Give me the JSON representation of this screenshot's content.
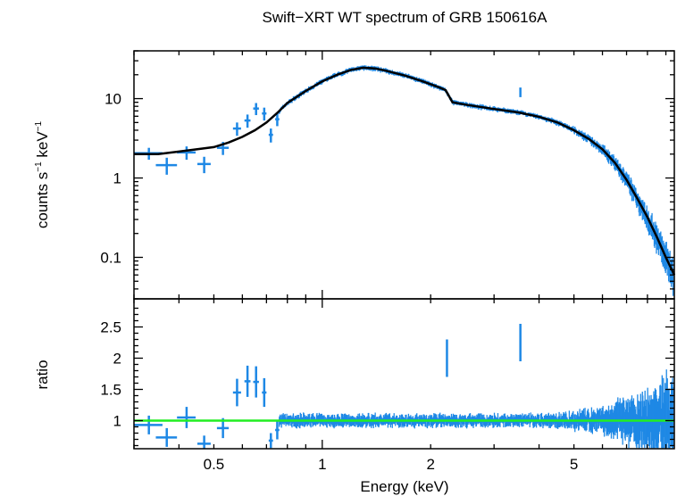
{
  "chart_data": [
    {
      "type": "scatter",
      "title": "Swift−XRT WT spectrum of GRB 150616A",
      "ylabel_text": "counts s",
      "ylabel_sup1": "−1",
      "ylabel_mid": " keV",
      "ylabel_sup2": "−1",
      "xscale": "log",
      "yscale": "log",
      "xlim": [
        0.3,
        9.5
      ],
      "ylim": [
        0.03,
        40
      ],
      "yticks": [
        {
          "value": 0.1,
          "label": "0.1"
        },
        {
          "value": 1,
          "label": "1"
        },
        {
          "value": 10,
          "label": "10"
        }
      ],
      "series": [
        {
          "kind": "data-crosses",
          "color": "#1e88e5",
          "points": [
            {
              "x": 0.33,
              "y": 2.05,
              "xerr": 0.03,
              "yerr": 0.35
            },
            {
              "x": 0.37,
              "y": 1.45,
              "xerr": 0.025,
              "yerr": 0.35
            },
            {
              "x": 0.42,
              "y": 2.1,
              "xerr": 0.025,
              "yerr": 0.4
            },
            {
              "x": 0.47,
              "y": 1.5,
              "xerr": 0.02,
              "yerr": 0.35
            },
            {
              "x": 0.53,
              "y": 2.4,
              "xerr": 0.02,
              "yerr": 0.45
            },
            {
              "x": 0.58,
              "y": 4.2,
              "xerr": 0.015,
              "yerr": 0.8
            },
            {
              "x": 0.62,
              "y": 5.3,
              "xerr": 0.012,
              "yerr": 1.0
            },
            {
              "x": 0.655,
              "y": 7.5,
              "xerr": 0.012,
              "yerr": 1.3
            },
            {
              "x": 0.69,
              "y": 6.5,
              "xerr": 0.01,
              "yerr": 1.2
            },
            {
              "x": 0.72,
              "y": 3.5,
              "xerr": 0.01,
              "yerr": 0.7
            },
            {
              "x": 0.75,
              "y": 5.5,
              "xerr": 0.01,
              "yerr": 1.0
            }
          ]
        },
        {
          "kind": "dense-band",
          "color": "#1e88e5",
          "outliers": [
            {
              "x": 3.55,
              "y": 12
            }
          ]
        },
        {
          "kind": "model",
          "color": "#000000",
          "points": [
            [
              0.3,
              2.0
            ],
            [
              0.32,
              2.0
            ],
            [
              0.35,
              2.0
            ],
            [
              0.4,
              2.15
            ],
            [
              0.45,
              2.3
            ],
            [
              0.5,
              2.45
            ],
            [
              0.55,
              2.8
            ],
            [
              0.6,
              3.3
            ],
            [
              0.65,
              4.0
            ],
            [
              0.7,
              5.0
            ],
            [
              0.75,
              6.6
            ],
            [
              0.8,
              8.8
            ],
            [
              0.9,
              12.5
            ],
            [
              1.0,
              16.5
            ],
            [
              1.1,
              20
            ],
            [
              1.2,
              23
            ],
            [
              1.3,
              24.5
            ],
            [
              1.4,
              24
            ],
            [
              1.5,
              22.5
            ],
            [
              1.7,
              19.5
            ],
            [
              1.9,
              16.5
            ],
            [
              2.1,
              14
            ],
            [
              2.2,
              12.8
            ],
            [
              2.3,
              9.0
            ],
            [
              2.5,
              8.4
            ],
            [
              3.0,
              7.4
            ],
            [
              3.5,
              6.7
            ],
            [
              4.0,
              5.9
            ],
            [
              4.5,
              5.0
            ],
            [
              5.0,
              4.0
            ],
            [
              5.5,
              3.1
            ],
            [
              6.0,
              2.3
            ],
            [
              6.5,
              1.55
            ],
            [
              7.0,
              0.95
            ],
            [
              7.5,
              0.55
            ],
            [
              8.0,
              0.32
            ],
            [
              8.5,
              0.18
            ],
            [
              9.0,
              0.1
            ],
            [
              9.5,
              0.06
            ]
          ]
        }
      ]
    },
    {
      "type": "scatter",
      "ylabel": "ratio",
      "xlabel": "Energy (keV)",
      "xscale": "log",
      "xlim": [
        0.3,
        9.5
      ],
      "ylim": [
        0.55,
        2.95
      ],
      "xticks": [
        {
          "value": 0.5,
          "label": "0.5"
        },
        {
          "value": 1,
          "label": "1"
        },
        {
          "value": 2,
          "label": "2"
        },
        {
          "value": 5,
          "label": "5"
        }
      ],
      "yticks": [
        {
          "value": 1,
          "label": "1"
        },
        {
          "value": 1.5,
          "label": "1.5"
        },
        {
          "value": 2,
          "label": "2"
        },
        {
          "value": 2.5,
          "label": "2.5"
        }
      ],
      "reference_line": {
        "y": 1,
        "color": "#22ee22"
      },
      "series": [
        {
          "kind": "data-crosses",
          "color": "#1e88e5",
          "points": [
            {
              "x": 0.33,
              "y": 0.93,
              "xerr": 0.03,
              "yerr": 0.15
            },
            {
              "x": 0.37,
              "y": 0.73,
              "xerr": 0.025,
              "yerr": 0.15
            },
            {
              "x": 0.42,
              "y": 1.05,
              "xerr": 0.025,
              "yerr": 0.17
            },
            {
              "x": 0.47,
              "y": 0.63,
              "xerr": 0.02,
              "yerr": 0.13
            },
            {
              "x": 0.53,
              "y": 0.88,
              "xerr": 0.02,
              "yerr": 0.16
            },
            {
              "x": 0.58,
              "y": 1.45,
              "xerr": 0.015,
              "yerr": 0.22
            },
            {
              "x": 0.62,
              "y": 1.63,
              "xerr": 0.012,
              "yerr": 0.25
            },
            {
              "x": 0.655,
              "y": 1.62,
              "xerr": 0.012,
              "yerr": 0.25
            },
            {
              "x": 0.69,
              "y": 1.45,
              "xerr": 0.01,
              "yerr": 0.23
            },
            {
              "x": 0.72,
              "y": 0.68,
              "xerr": 0.01,
              "yerr": 0.12
            },
            {
              "x": 0.75,
              "y": 0.85,
              "xerr": 0.01,
              "yerr": 0.15
            }
          ]
        },
        {
          "kind": "dense-band",
          "color": "#1e88e5",
          "outliers": [
            {
              "x": 3.55,
              "y": 2.2
            },
            {
              "x": 2.22,
              "y": 1.95
            }
          ]
        }
      ]
    }
  ]
}
